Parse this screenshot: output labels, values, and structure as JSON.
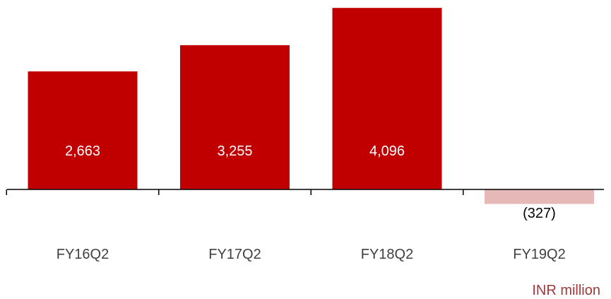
{
  "chart_data": {
    "type": "bar",
    "categories": [
      "FY16Q2",
      "FY17Q2",
      "FY18Q2",
      "FY19Q2"
    ],
    "values": [
      2663,
      3255,
      4096,
      -327
    ],
    "value_labels": [
      "2,663",
      "3,255",
      "4,096",
      "(327)"
    ],
    "unit_label": "INR million",
    "title": "",
    "xlabel": "",
    "ylabel": "",
    "grid": false,
    "legend": "none"
  },
  "colors": {
    "positive_bar": "#c00000",
    "negative_bar": "#e6b9b8",
    "positive_label": "#ffffff",
    "negative_label": "#000000",
    "unit_label": "#a5373a",
    "axis": "#000000"
  }
}
